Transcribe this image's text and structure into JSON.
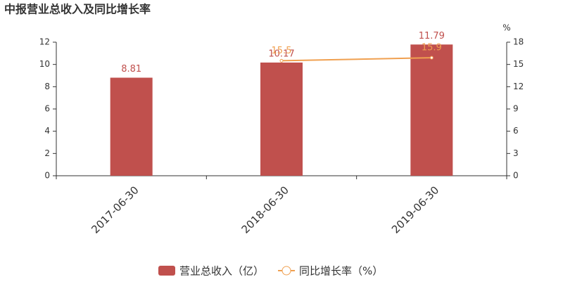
{
  "chart_data": {
    "type": "bar_line",
    "title": "中报营业总收入及同比增长率",
    "categories": [
      "2017-06-30",
      "2018-06-30",
      "2019-06-30"
    ],
    "series": [
      {
        "name": "营业总收入（亿）",
        "type": "bar",
        "color": "#c0504d",
        "values": [
          8.81,
          10.17,
          11.79
        ]
      },
      {
        "name": "同比增长率（%）",
        "type": "line",
        "axis": "y2",
        "color": "#f0a050",
        "values": [
          null,
          15.5,
          15.9
        ]
      }
    ],
    "ylim": [
      0,
      12
    ],
    "yticks": [
      0,
      2,
      4,
      6,
      8,
      10,
      12
    ],
    "y2lim": [
      0,
      18
    ],
    "y2ticks": [
      0,
      3,
      6,
      9,
      12,
      15,
      18
    ],
    "y2_unit": "%"
  }
}
